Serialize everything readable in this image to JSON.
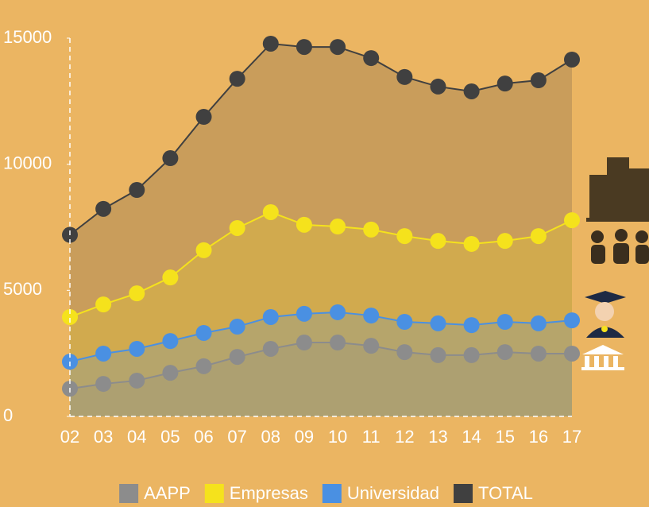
{
  "chart_data": {
    "type": "area",
    "categories": [
      "02",
      "03",
      "04",
      "05",
      "06",
      "07",
      "08",
      "09",
      "10",
      "11",
      "12",
      "13",
      "14",
      "15",
      "16",
      "17"
    ],
    "series": [
      {
        "name": "TOTAL",
        "color": "#404040",
        "values": [
          7200,
          8230,
          8980,
          10240,
          11880,
          13390,
          14780,
          14650,
          14650,
          14210,
          13460,
          13080,
          12890,
          13200,
          13330,
          14150
        ]
      },
      {
        "name": "Empresas",
        "color": "#f5e21c",
        "values": [
          3940,
          4440,
          4880,
          5510,
          6590,
          7470,
          8100,
          7600,
          7530,
          7410,
          7150,
          6960,
          6840,
          6960,
          7150,
          7780
        ]
      },
      {
        "name": "Universidad",
        "color": "#4a90e2",
        "values": [
          2170,
          2490,
          2680,
          2990,
          3310,
          3560,
          3940,
          4070,
          4130,
          4000,
          3750,
          3690,
          3620,
          3750,
          3690,
          3810
        ]
      },
      {
        "name": "AAPP",
        "color": "#8c8c8c",
        "values": [
          1100,
          1290,
          1420,
          1730,
          1990,
          2360,
          2680,
          2930,
          2930,
          2800,
          2550,
          2430,
          2430,
          2550,
          2490,
          2490
        ]
      }
    ],
    "legend_order": [
      "AAPP",
      "Empresas",
      "Universidad",
      "TOTAL"
    ],
    "ylim": [
      0,
      15000
    ],
    "yticks": [
      0,
      5000,
      10000,
      15000
    ],
    "legend": "bottom"
  }
}
